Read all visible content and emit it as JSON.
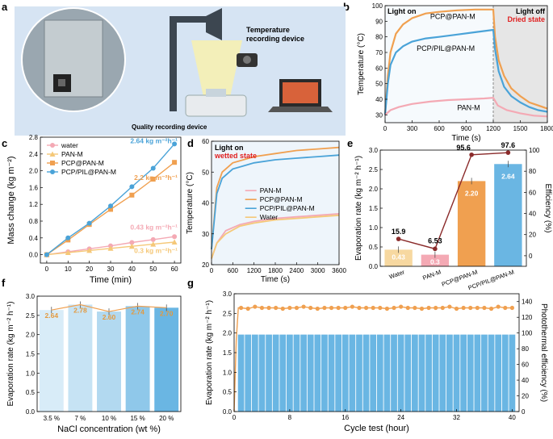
{
  "panels": {
    "a": "a",
    "b": "b",
    "c": "c",
    "d": "d",
    "e": "e",
    "f": "f",
    "g": "g"
  },
  "panel_a": {
    "temperature_label_line1": "Temperature",
    "temperature_label_line2": "recording device",
    "quality_label": "Quality recording device"
  },
  "colors": {
    "pcp": "#f0a050",
    "pil": "#4aa3d8",
    "pan": "#f4a9b4",
    "water": "#f5c878",
    "ratio_line": "#8a2a2a",
    "orange_line": "#f0a050",
    "red_text": "#e02020",
    "sky_bar": "#6ab6e3",
    "dark_text": "#222222"
  },
  "chart_data": [
    {
      "id": "b",
      "type": "line",
      "title": "",
      "xlabel": "Time (s)",
      "ylabel": "Temperature (°C)",
      "xlim": [
        0,
        1800
      ],
      "ylim": [
        25,
        100
      ],
      "xticks": [
        0,
        300,
        600,
        900,
        1200,
        1500,
        1800
      ],
      "yticks": [
        30,
        40,
        50,
        60,
        70,
        80,
        90,
        100
      ],
      "annotations": {
        "light_on": "Light on",
        "light_off": "Light off",
        "dried": "Dried state"
      },
      "series": [
        {
          "name": "PCP@PAN-M",
          "label_text": "PCP@PAN-M",
          "color": "#f0a050",
          "x": [
            0,
            30,
            60,
            120,
            200,
            300,
            450,
            600,
            800,
            1000,
            1200,
            1220,
            1260,
            1320,
            1400,
            1500,
            1600,
            1700,
            1800
          ],
          "y": [
            30,
            55,
            70,
            82,
            88,
            92,
            95,
            96,
            97,
            97.5,
            97.5,
            80,
            65,
            55,
            47,
            42,
            38,
            36,
            34
          ]
        },
        {
          "name": "PCP/PIL@PAN-M",
          "label_text": "PCP/PIL@PAN-M",
          "color": "#4aa3d8",
          "x": [
            0,
            30,
            60,
            120,
            200,
            300,
            450,
            600,
            800,
            1000,
            1200,
            1220,
            1260,
            1320,
            1400,
            1500,
            1600,
            1700,
            1800
          ],
          "y": [
            30,
            50,
            62,
            70,
            74,
            77,
            79,
            80,
            81.5,
            83,
            84.5,
            72,
            58,
            48,
            42,
            38,
            35,
            33,
            32
          ]
        },
        {
          "name": "PAN-M",
          "label_text": "PAN-M",
          "color": "#f4a9b4",
          "x": [
            0,
            60,
            150,
            300,
            500,
            700,
            900,
            1100,
            1200,
            1250,
            1350,
            1500,
            1650,
            1800
          ],
          "y": [
            30,
            33,
            35,
            37,
            38.5,
            39.5,
            40,
            40.5,
            41,
            36,
            33,
            31,
            29.5,
            29
          ]
        }
      ]
    },
    {
      "id": "c",
      "type": "line",
      "xlabel": "Time (min)",
      "ylabel": "Mass change (kg m⁻²)",
      "xlim": [
        -3,
        63
      ],
      "ylim": [
        -0.2,
        2.8
      ],
      "xticks": [
        0,
        10,
        20,
        30,
        40,
        50,
        60
      ],
      "yticks": [
        0.0,
        0.4,
        0.8,
        1.2,
        1.6,
        2.0,
        2.4,
        2.8
      ],
      "rate_labels": [
        {
          "text": "2.64 kg m⁻²h⁻¹",
          "color": "#4aa3d8"
        },
        {
          "text": "2.2 kg m⁻²h⁻¹",
          "color": "#f0a050"
        },
        {
          "text": "0.43 kg m⁻²h⁻¹",
          "color": "#f4a9b4"
        },
        {
          "text": "0.3 kg m⁻²h⁻¹",
          "color": "#f5c878"
        }
      ],
      "series": [
        {
          "name": "water",
          "marker": "circle",
          "color": "#f4a9b4",
          "x": [
            0,
            10,
            20,
            30,
            40,
            50,
            60
          ],
          "y": [
            0,
            0.07,
            0.14,
            0.21,
            0.29,
            0.36,
            0.43
          ]
        },
        {
          "name": "PAN-M",
          "marker": "triangle",
          "color": "#f5c878",
          "x": [
            0,
            10,
            20,
            30,
            40,
            50,
            60
          ],
          "y": [
            0,
            0.05,
            0.1,
            0.15,
            0.2,
            0.25,
            0.3
          ]
        },
        {
          "name": "PCP@PAN-M",
          "marker": "square",
          "color": "#f0a050",
          "x": [
            0,
            10,
            20,
            30,
            40,
            50,
            60
          ],
          "y": [
            0,
            0.35,
            0.72,
            1.08,
            1.42,
            1.8,
            2.2
          ]
        },
        {
          "name": "PCP/PIL@PAN-M",
          "marker": "circle",
          "color": "#4aa3d8",
          "x": [
            0,
            10,
            20,
            30,
            40,
            50,
            60
          ],
          "y": [
            0,
            0.4,
            0.75,
            1.16,
            1.62,
            2.06,
            2.64
          ]
        }
      ]
    },
    {
      "id": "d",
      "type": "line",
      "xlabel": "Time (s)",
      "ylabel": "Temperature (°C)",
      "xlim": [
        0,
        3600
      ],
      "ylim": [
        20,
        60
      ],
      "xticks": [
        0,
        600,
        1200,
        1800,
        2400,
        3000,
        3600
      ],
      "yticks": [
        20,
        30,
        40,
        50,
        60
      ],
      "annotations": {
        "light_on": "Light on",
        "wetted": "wetted state"
      },
      "series": [
        {
          "name": "PAN-M",
          "color": "#f4a9b4",
          "x": [
            0,
            150,
            400,
            800,
            1200,
            1800,
            2400,
            3000,
            3600
          ],
          "y": [
            22,
            27,
            31,
            33,
            34,
            35,
            35.5,
            36,
            36.5
          ]
        },
        {
          "name": "PCP@PAN-M",
          "color": "#f0a050",
          "x": [
            0,
            150,
            300,
            600,
            900,
            1200,
            1800,
            2400,
            3000,
            3600
          ],
          "y": [
            25,
            45,
            50,
            53,
            54,
            55,
            56,
            57,
            57.5,
            58
          ]
        },
        {
          "name": "PCP/PIL@PAN-M",
          "color": "#4aa3d8",
          "x": [
            0,
            150,
            300,
            600,
            900,
            1200,
            1800,
            2400,
            3000,
            3600
          ],
          "y": [
            25,
            43,
            48,
            51,
            52,
            53,
            54,
            54.5,
            55,
            55.5
          ]
        },
        {
          "name": "Water",
          "color": "#f5c878",
          "x": [
            0,
            150,
            400,
            800,
            1200,
            1800,
            2400,
            3000,
            3600
          ],
          "y": [
            22,
            27,
            30,
            32.5,
            33.5,
            34.5,
            35,
            35.5,
            36
          ]
        }
      ]
    },
    {
      "id": "e",
      "type": "bar",
      "ylabel": "Evaporation rate (kg m⁻² h⁻¹)",
      "y2label": "Efficiency (%)",
      "ylim": [
        0,
        3.0
      ],
      "yticks": [
        0.0,
        0.5,
        1.0,
        1.5,
        2.0,
        2.5,
        3.0
      ],
      "y2lim": [
        -10,
        100
      ],
      "y2ticks": [
        0,
        20,
        40,
        60,
        80,
        100
      ],
      "categories": [
        "Water",
        "PAN-M",
        "PCP@PAN-M",
        "PCP/PIL@PAN-M"
      ],
      "values": [
        0.43,
        0.3,
        2.2,
        2.64
      ],
      "value_labels": [
        "0.43",
        "0.3",
        "2.20",
        "2.64"
      ],
      "bar_colors": [
        "#f7d8a0",
        "#f4a9b4",
        "#f0a050",
        "#6ab6e3"
      ],
      "efficiency": [
        15.9,
        6.53,
        95.6,
        97.6
      ],
      "efficiency_labels": [
        "15.9",
        "6.53",
        "95.6",
        "97.6"
      ]
    },
    {
      "id": "f",
      "type": "bar",
      "xlabel": "NaCl concentration (wt %)",
      "ylabel": "Evaporation rate (kg m⁻² h⁻¹)",
      "ylim": [
        0,
        3.0
      ],
      "yticks": [
        0.0,
        0.5,
        1.0,
        1.5,
        2.0,
        2.5,
        3.0
      ],
      "categories": [
        "3.5 %",
        "7 %",
        "10 %",
        "15 %",
        "20 %"
      ],
      "values": [
        2.64,
        2.78,
        2.6,
        2.74,
        2.7
      ],
      "value_labels": [
        "2.64",
        "2.78",
        "2.60",
        "2.74",
        "2.70"
      ]
    },
    {
      "id": "g",
      "type": "bar",
      "xlabel": "Cycle test (hour)",
      "ylabel": "Evaporation rate (kg m⁻² h⁻¹)",
      "y2label": "Photothermal efficiency (%)",
      "xlim": [
        0,
        41
      ],
      "xticks": [
        0,
        8,
        16,
        24,
        32,
        40
      ],
      "ylim": [
        0,
        3.0
      ],
      "yticks": [
        0.0,
        0.5,
        1.0,
        1.5,
        2.0,
        2.5,
        3.0
      ],
      "y2lim": [
        0,
        150
      ],
      "y2ticks": [
        0,
        20,
        40,
        60,
        80,
        100,
        120,
        140
      ],
      "bar_value": 1.96,
      "bar_count": 40,
      "efficiency_value": 132
    }
  ]
}
